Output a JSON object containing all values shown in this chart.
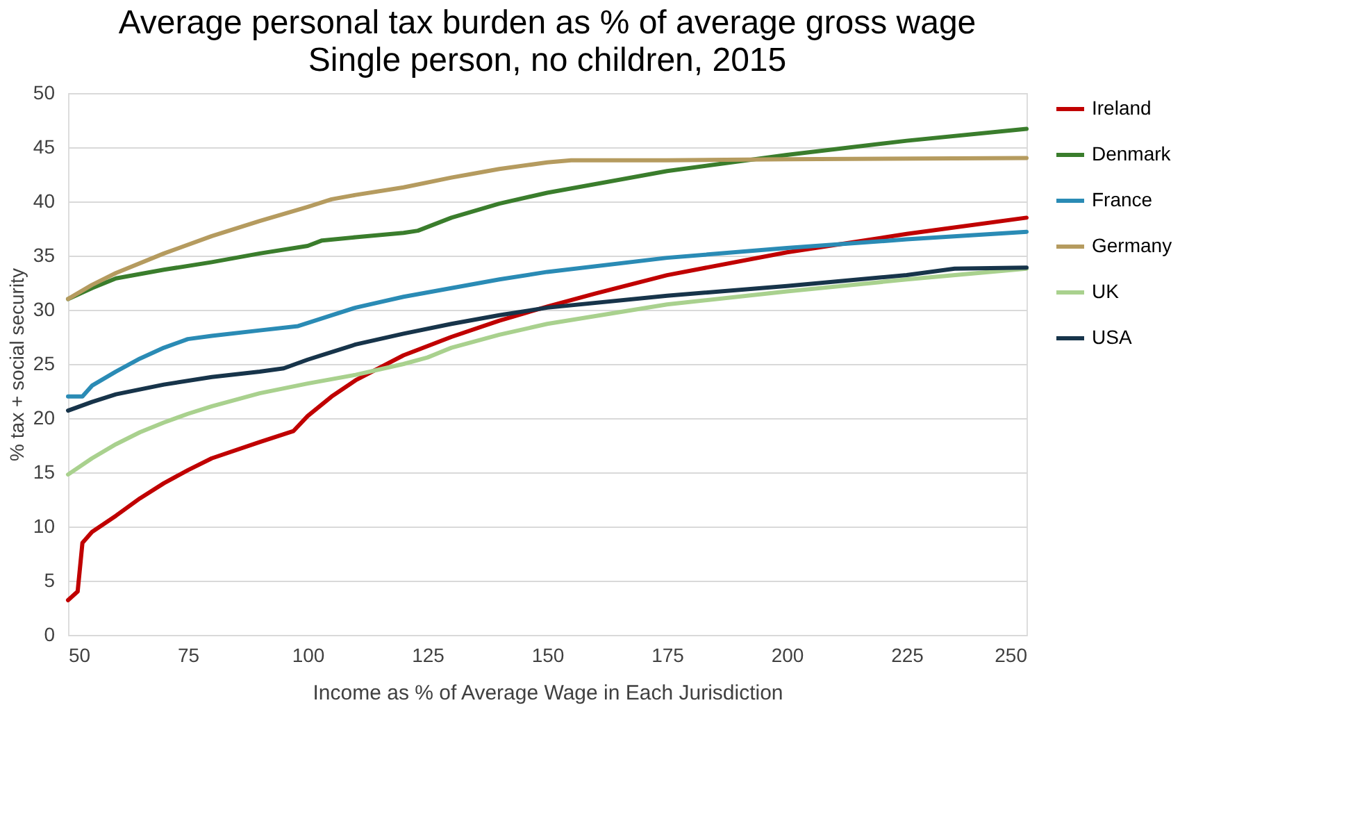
{
  "chart_data": {
    "type": "line",
    "title": "Average personal tax burden as % of average gross wage",
    "subtitle": "Single person, no children, 2015",
    "xlabel": "Income as % of Average Wage in Each Jurisdiction",
    "ylabel": "% tax + social security",
    "xlim": [
      50,
      250
    ],
    "xticks": [
      50,
      75,
      100,
      125,
      150,
      175,
      200,
      225,
      250
    ],
    "ylim": [
      0,
      50
    ],
    "yticks": [
      0,
      5,
      10,
      15,
      20,
      25,
      30,
      35,
      40,
      45,
      50
    ],
    "grid": "y",
    "legend": "right",
    "marker": "none",
    "line_style": "solid",
    "series": [
      {
        "name": "Ireland",
        "color": "#c00000",
        "x": [
          50,
          52,
          53,
          55,
          60,
          65,
          70,
          75,
          80,
          90,
          97,
          100,
          105,
          110,
          120,
          130,
          140,
          150,
          160,
          175,
          200,
          225,
          250
        ],
        "values": [
          3.2,
          4,
          8.5,
          9.5,
          11,
          12.6,
          14,
          15.2,
          16.3,
          17.8,
          18.8,
          20.2,
          22,
          23.5,
          25.8,
          27.5,
          29,
          30.3,
          31.5,
          33.2,
          35.3,
          37,
          38.5
        ]
      },
      {
        "name": "Denmark",
        "color": "#3a7d2c",
        "x": [
          50,
          55,
          60,
          70,
          80,
          90,
          100,
          103,
          110,
          120,
          123,
          130,
          140,
          150,
          175,
          200,
          225,
          250
        ],
        "values": [
          31,
          32,
          32.9,
          33.7,
          34.4,
          35.2,
          35.9,
          36.4,
          36.7,
          37.1,
          37.3,
          38.5,
          39.8,
          40.8,
          42.8,
          44.3,
          45.6,
          46.7
        ]
      },
      {
        "name": "France",
        "color": "#2a8bb5",
        "x": [
          50,
          53,
          55,
          60,
          65,
          70,
          75,
          80,
          90,
          98,
          105,
          110,
          120,
          130,
          140,
          150,
          175,
          200,
          225,
          250
        ],
        "values": [
          22,
          22,
          23,
          24.3,
          25.5,
          26.5,
          27.3,
          27.6,
          28.1,
          28.5,
          29.5,
          30.2,
          31.2,
          32,
          32.8,
          33.5,
          34.8,
          35.7,
          36.5,
          37.2
        ]
      },
      {
        "name": "Germany",
        "color": "#b59b5f",
        "x": [
          50,
          55,
          60,
          70,
          80,
          90,
          100,
          105,
          110,
          120,
          130,
          140,
          150,
          155,
          175,
          200,
          250
        ],
        "values": [
          31,
          32.3,
          33.4,
          35.2,
          36.8,
          38.2,
          39.5,
          40.2,
          40.6,
          41.3,
          42.2,
          43,
          43.6,
          43.8,
          43.8,
          43.9,
          44
        ]
      },
      {
        "name": "UK",
        "color": "#a9d18e",
        "x": [
          50,
          55,
          60,
          65,
          70,
          75,
          80,
          90,
          100,
          110,
          120,
          125,
          130,
          140,
          150,
          175,
          200,
          225,
          250
        ],
        "values": [
          14.8,
          16.3,
          17.6,
          18.7,
          19.6,
          20.4,
          21.1,
          22.3,
          23.2,
          24,
          25,
          25.6,
          26.5,
          27.7,
          28.7,
          30.5,
          31.7,
          32.8,
          33.8
        ]
      },
      {
        "name": "USA",
        "color": "#17344a",
        "x": [
          50,
          55,
          60,
          70,
          80,
          90,
          95,
          100,
          110,
          120,
          130,
          140,
          150,
          175,
          200,
          225,
          235,
          250
        ],
        "values": [
          20.7,
          21.5,
          22.2,
          23.1,
          23.8,
          24.3,
          24.6,
          25.4,
          26.8,
          27.8,
          28.7,
          29.5,
          30.2,
          31.3,
          32.2,
          33.2,
          33.8,
          33.9
        ]
      }
    ]
  }
}
